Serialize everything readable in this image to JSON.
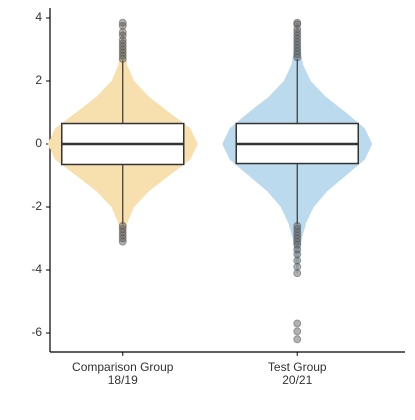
{
  "chart_data": {
    "type": "violin",
    "categories": [
      "Comparison Group",
      "Test Group"
    ],
    "category_counts": [
      "18/19",
      "20/21"
    ],
    "ylim": [
      -6.6,
      4.3
    ],
    "yticks": [
      -6,
      -4,
      -2,
      0,
      2,
      4
    ],
    "groups": [
      {
        "color": "#f7dfae",
        "violin": {
          "y": [
            -3.1,
            -2.5,
            -2,
            -1.5,
            -1,
            -0.5,
            0,
            0.5,
            1,
            1.5,
            2,
            2.5,
            3,
            3.5,
            3.85
          ],
          "density": [
            0.01,
            0.06,
            0.15,
            0.35,
            0.62,
            0.9,
            1,
            0.9,
            0.62,
            0.35,
            0.15,
            0.06,
            0.03,
            0.015,
            0.01
          ]
        },
        "box": {
          "whisker_low": -2.55,
          "q1": -0.65,
          "median": 0,
          "q3": 0.65,
          "whisker_high": 2.65
        },
        "outliers": [
          2.7,
          2.8,
          2.9,
          3.0,
          3.1,
          3.2,
          3.3,
          3.45,
          3.55,
          3.75,
          3.85,
          -2.6,
          -2.7,
          -2.8,
          -2.9,
          -3.0,
          -3.1
        ]
      },
      {
        "color": "#bcdaee",
        "violin": {
          "y": [
            -4.1,
            -3.5,
            -3,
            -2.5,
            -2,
            -1.5,
            -1,
            -0.5,
            0,
            0.5,
            1,
            1.5,
            2,
            2.5,
            3,
            3.5,
            3.85
          ],
          "density": [
            0.01,
            0.03,
            0.06,
            0.12,
            0.22,
            0.4,
            0.65,
            0.9,
            1,
            0.9,
            0.65,
            0.38,
            0.18,
            0.08,
            0.04,
            0.02,
            0.01
          ]
        },
        "box": {
          "whisker_low": -2.55,
          "q1": -0.62,
          "median": 0,
          "q3": 0.65,
          "whisker_high": 2.7
        },
        "outliers": [
          2.75,
          2.85,
          2.95,
          3.05,
          3.15,
          3.25,
          3.35,
          3.45,
          3.55,
          3.65,
          3.8,
          3.85,
          -2.6,
          -2.7,
          -2.8,
          -2.9,
          -3.0,
          -3.1,
          -3.2,
          -3.35,
          -3.5,
          -3.7,
          -3.9,
          -4.1,
          -5.7,
          -5.95,
          -6.2
        ]
      }
    ]
  }
}
